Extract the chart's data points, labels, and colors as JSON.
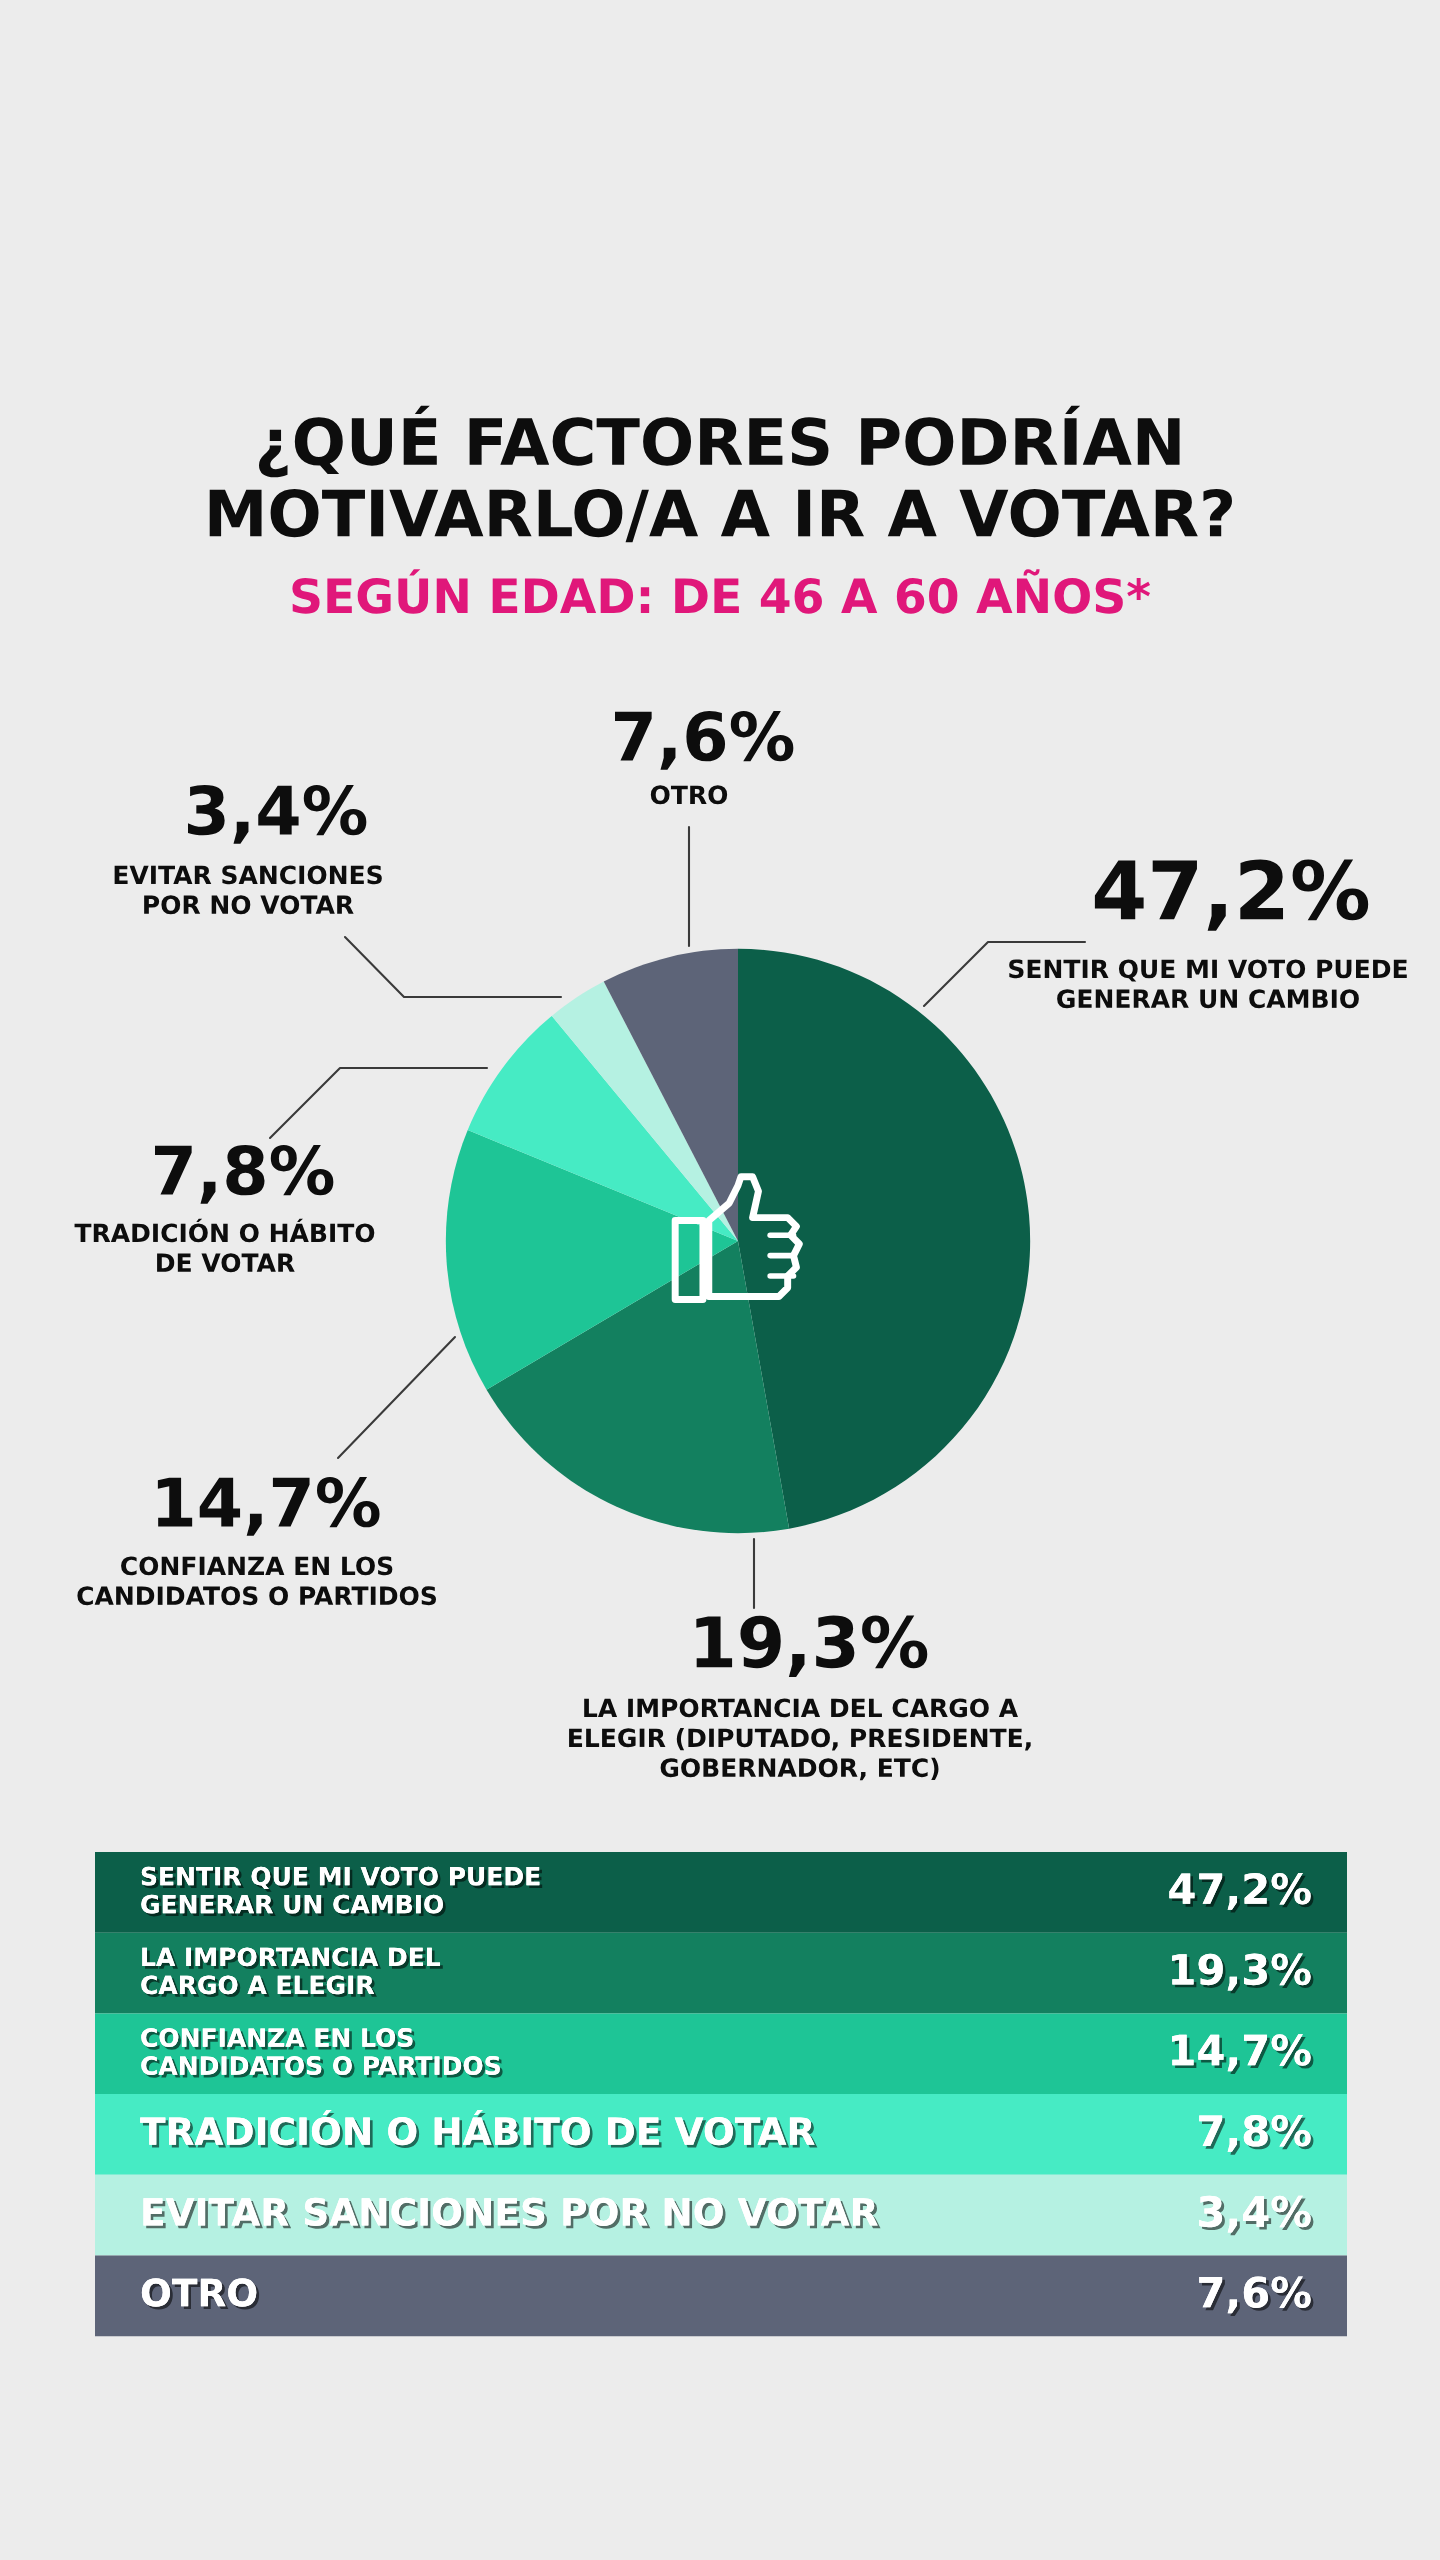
{
  "chart_data": {
    "type": "pie",
    "title": "¿QUÉ FACTORES PODRÍAN\nMOTIVARLO/A A IR A VOTAR?",
    "subtitle": "SEGÚN EDAD: DE 46 A 60 AÑOS*",
    "categories": [
      "SENTIR QUE MI VOTO PUEDE\nGENERAR UN CAMBIO",
      "LA IMPORTANCIA DEL CARGO A\nELEGIR (DIPUTADO, PRESIDENTE,\nGOBERNADOR, ETC)",
      "CONFIANZA EN LOS\nCANDIDATOS O PARTIDOS",
      "TRADICIÓN O HÁBITO\nDE VOTAR",
      "EVITAR SANCIONES\nPOR NO VOTAR",
      "OTRO"
    ],
    "values": [
      47.2,
      19.3,
      14.7,
      7.8,
      3.4,
      7.6
    ],
    "colors": [
      "#0c5f49",
      "#13805f",
      "#1ec596",
      "#46ebc4",
      "#b5f1e2",
      "#5d6478"
    ],
    "value_labels": [
      "47,2%",
      "19,3%",
      "14,7%",
      "7,8%",
      "3,4%",
      "7,6%"
    ],
    "annotations": [
      "SENTIR QUE MI VOTO PUEDE\nGENERAR UN CAMBIO",
      "LA IMPORTANCIA DEL\nCARGO A ELEGIR",
      "CONFIANZA EN LOS\nCANDIDATOS O PARTIDOS",
      "TRADICIÓN O HÁBITO DE VOTAR",
      "EVITAR SANCIONES POR NO VOTAR",
      "OTRO"
    ]
  }
}
